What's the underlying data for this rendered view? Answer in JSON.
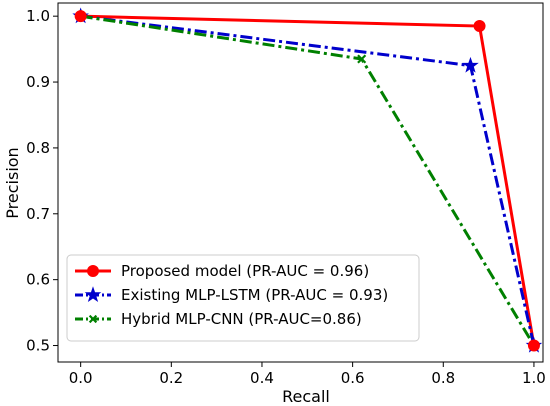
{
  "chart_data": {
    "type": "line",
    "xlabel": "Recall",
    "ylabel": "Precision",
    "xlim": [
      -0.05,
      1.02
    ],
    "ylim": [
      0.475,
      1.02
    ],
    "x_ticks": [
      0.0,
      0.2,
      0.4,
      0.6,
      0.8,
      1.0
    ],
    "x_tick_labels": [
      "0.0",
      "0.2",
      "0.4",
      "0.6",
      "0.8",
      "1.0"
    ],
    "y_ticks": [
      0.5,
      0.6,
      0.7,
      0.8,
      0.9,
      1.0
    ],
    "y_tick_labels": [
      "0.5",
      "0.6",
      "0.7",
      "0.8",
      "0.9",
      "1.0"
    ],
    "grid": false,
    "legend_position": "lower-left",
    "series": [
      {
        "name": "Proposed model (PR-AUC = 0.96)",
        "color": "#ff0000",
        "line_style": "solid",
        "marker": "circle",
        "x": [
          0.0,
          0.88,
          1.0
        ],
        "y": [
          1.0,
          0.985,
          0.5
        ]
      },
      {
        "name": "Existing MLP-LSTM (PR-AUC = 0.93)",
        "color": "#0000cc",
        "line_style": "dash-dot",
        "marker": "star",
        "x": [
          0.0,
          0.86,
          1.0
        ],
        "y": [
          1.0,
          0.925,
          0.5
        ]
      },
      {
        "name": "Hybrid MLP-CNN (PR-AUC=0.86)",
        "color": "#008000",
        "line_style": "dash-dot",
        "marker": "x",
        "x": [
          0.0,
          0.62,
          1.0
        ],
        "y": [
          1.0,
          0.935,
          0.5
        ]
      }
    ]
  }
}
